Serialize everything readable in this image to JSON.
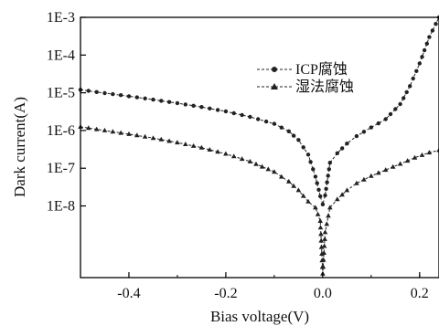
{
  "chart_data": {
    "type": "line",
    "xlabel": "Bias voltage(V)",
    "ylabel": "Dark current(A)",
    "xlim": [
      -0.5,
      0.24
    ],
    "ylim_log10": [
      -9.9,
      -3
    ],
    "y_scale": "log",
    "x_ticks": [
      {
        "value": -0.4,
        "label": "-0.4"
      },
      {
        "value": -0.2,
        "label": "-0.2"
      },
      {
        "value": 0.0,
        "label": "0.0"
      },
      {
        "value": 0.2,
        "label": "0.2"
      }
    ],
    "y_ticks": [
      {
        "value": 0.001,
        "label": "1E-3"
      },
      {
        "value": 0.0001,
        "label": "1E-4"
      },
      {
        "value": 1e-05,
        "label": "1E-5"
      },
      {
        "value": 1e-06,
        "label": "1E-6"
      },
      {
        "value": 1e-07,
        "label": "1E-7"
      },
      {
        "value": 1e-08,
        "label": "1E-8"
      }
    ],
    "legend_position": "upper-center",
    "series": [
      {
        "name": "ICP腐蚀",
        "marker": "circle",
        "color": "#222222",
        "points": [
          [
            -0.5,
            1.2e-05
          ],
          [
            -0.45,
            9.8e-06
          ],
          [
            -0.4,
            8.1e-06
          ],
          [
            -0.35,
            6.6e-06
          ],
          [
            -0.3,
            5.3e-06
          ],
          [
            -0.25,
            4.2e-06
          ],
          [
            -0.2,
            3.2e-06
          ],
          [
            -0.15,
            2.3e-06
          ],
          [
            -0.1,
            1.5e-06
          ],
          [
            -0.07,
            9.5e-07
          ],
          [
            -0.05,
            5.6e-07
          ],
          [
            -0.03,
            2.3e-07
          ],
          [
            -0.015,
            6e-08
          ],
          [
            -0.005,
            1.8e-08
          ],
          [
            0.0,
            1.1e-08
          ],
          [
            0.005,
            1.9e-08
          ],
          [
            0.015,
            1.4e-07
          ],
          [
            0.03,
            2.5e-07
          ],
          [
            0.05,
            4.5e-07
          ],
          [
            0.07,
            7.1e-07
          ],
          [
            0.1,
            1.2e-06
          ],
          [
            0.13,
            2e-06
          ],
          [
            0.16,
            5e-06
          ],
          [
            0.18,
            1.5e-05
          ],
          [
            0.2,
            6e-05
          ],
          [
            0.22,
            0.0003
          ],
          [
            0.24,
            0.001
          ]
        ]
      },
      {
        "name": "湿法腐蚀",
        "marker": "triangle",
        "color": "#222222",
        "points": [
          [
            -0.5,
            1.25e-06
          ],
          [
            -0.45,
            1e-06
          ],
          [
            -0.4,
            8e-07
          ],
          [
            -0.35,
            6.3e-07
          ],
          [
            -0.3,
            4.8e-07
          ],
          [
            -0.25,
            3.5e-07
          ],
          [
            -0.2,
            2.4e-07
          ],
          [
            -0.15,
            1.5e-07
          ],
          [
            -0.1,
            8e-08
          ],
          [
            -0.07,
            4.4e-08
          ],
          [
            -0.05,
            2.6e-08
          ],
          [
            -0.03,
            1.3e-08
          ],
          [
            -0.015,
            9e-09
          ],
          [
            -0.005,
            4e-09
          ],
          [
            0.0,
            1.6e-10
          ],
          [
            0.005,
            2e-09
          ],
          [
            0.015,
            9e-09
          ],
          [
            0.03,
            1.5e-08
          ],
          [
            0.05,
            2.6e-08
          ],
          [
            0.07,
            4e-08
          ],
          [
            0.1,
            6.2e-08
          ],
          [
            0.13,
            9e-08
          ],
          [
            0.16,
            1.3e-07
          ],
          [
            0.19,
            1.9e-07
          ],
          [
            0.22,
            2.6e-07
          ],
          [
            0.24,
            3e-07
          ]
        ]
      }
    ]
  }
}
